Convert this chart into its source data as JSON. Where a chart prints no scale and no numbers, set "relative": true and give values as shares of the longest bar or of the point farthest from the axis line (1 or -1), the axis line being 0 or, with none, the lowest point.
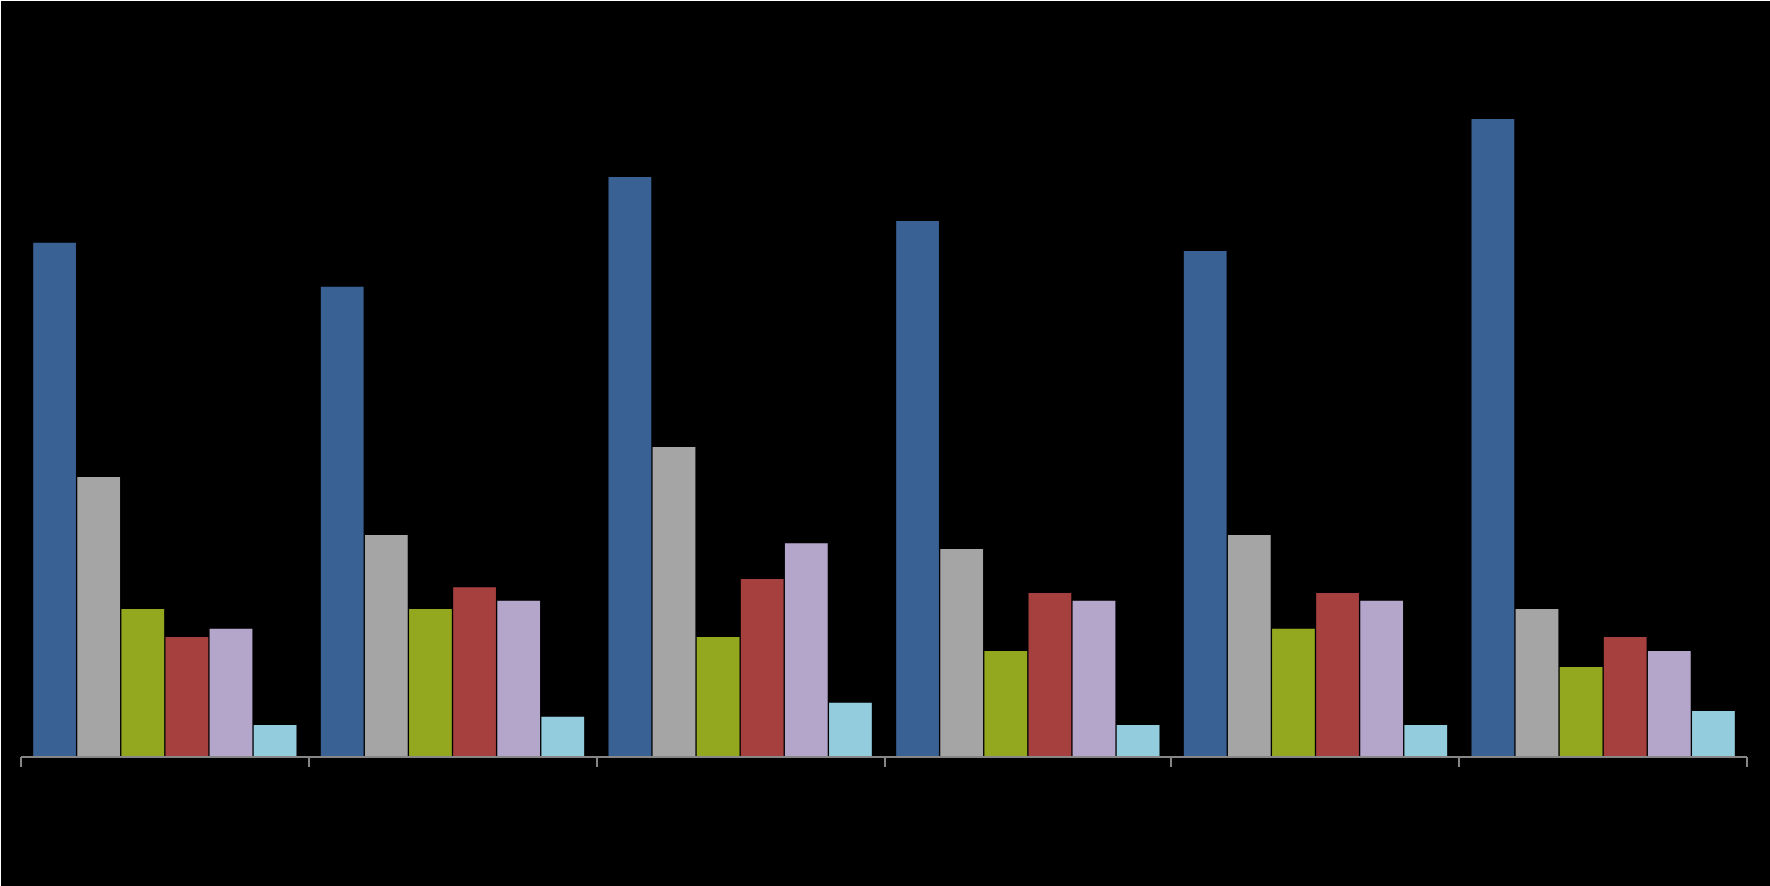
{
  "chart_data": {
    "type": "bar",
    "relative": true,
    "categories": [
      null,
      null,
      null,
      null,
      null,
      null
    ],
    "series": [
      {
        "color": "#3a6193",
        "values": [
          0.806,
          0.737,
          0.909,
          0.84,
          0.793,
          1.0
        ]
      },
      {
        "color": "#a5a5a5",
        "values": [
          0.439,
          0.348,
          0.486,
          0.326,
          0.348,
          0.232
        ]
      },
      {
        "color": "#93a81f",
        "values": [
          0.232,
          0.232,
          0.188,
          0.166,
          0.201,
          0.141
        ]
      },
      {
        "color": "#a6403e",
        "values": [
          0.188,
          0.266,
          0.279,
          0.257,
          0.257,
          0.188
        ]
      },
      {
        "color": "#b4a5cb",
        "values": [
          0.201,
          0.245,
          0.335,
          0.245,
          0.245,
          0.166
        ]
      },
      {
        "color": "#93cddd",
        "values": [
          0.05,
          0.063,
          0.085,
          0.05,
          0.05,
          0.072
        ]
      }
    ],
    "grid": false
  }
}
